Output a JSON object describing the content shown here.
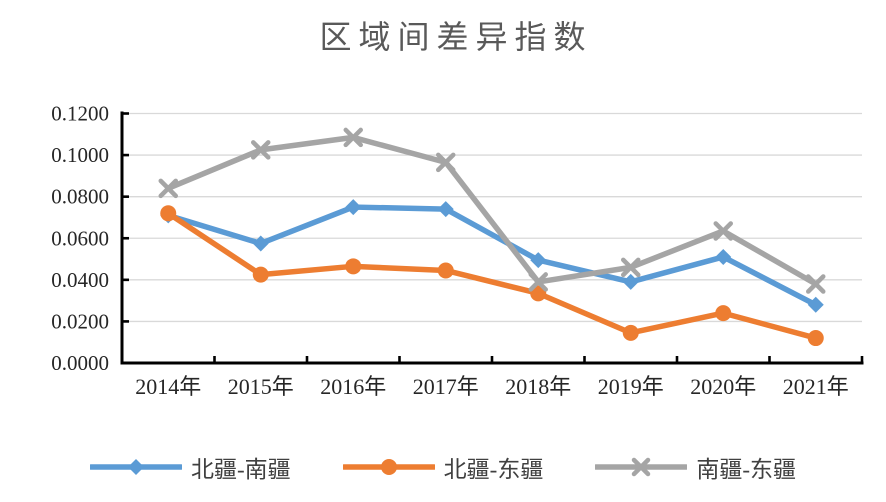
{
  "title": "区域间差异指数",
  "chart_data": {
    "type": "line",
    "title": "区域间差异指数",
    "categories": [
      "2014年",
      "2015年",
      "2016年",
      "2017年",
      "2018年",
      "2019年",
      "2020年",
      "2021年"
    ],
    "series": [
      {
        "name": "北疆-南疆",
        "color": "#5B9BD5",
        "marker": "diamond",
        "values": [
          0.071,
          0.0575,
          0.075,
          0.074,
          0.0495,
          0.039,
          0.051,
          0.028
        ]
      },
      {
        "name": "北疆-东疆",
        "color": "#ED7D31",
        "marker": "circle",
        "values": [
          0.072,
          0.0425,
          0.0465,
          0.0445,
          0.0335,
          0.0145,
          0.024,
          0.012
        ]
      },
      {
        "name": "南疆-东疆",
        "color": "#A5A5A5",
        "marker": "x",
        "values": [
          0.084,
          0.1025,
          0.1085,
          0.0965,
          0.039,
          0.046,
          0.0635,
          0.038
        ]
      }
    ],
    "y_ticks": [
      "0.1200",
      "0.1000",
      "0.0800",
      "0.0600",
      "0.0400",
      "0.0200",
      "0.0000"
    ],
    "ylim": [
      0,
      0.12
    ],
    "xlabel": "",
    "ylabel": "",
    "grid": true,
    "legend_position": "bottom"
  },
  "style": {
    "title_color": "#595959",
    "axis_color": "#000000",
    "gridline_color": "#D9D9D9",
    "tick_label_color": "#262626",
    "legend_text_color": "#404040",
    "background": "#FFFFFF"
  }
}
